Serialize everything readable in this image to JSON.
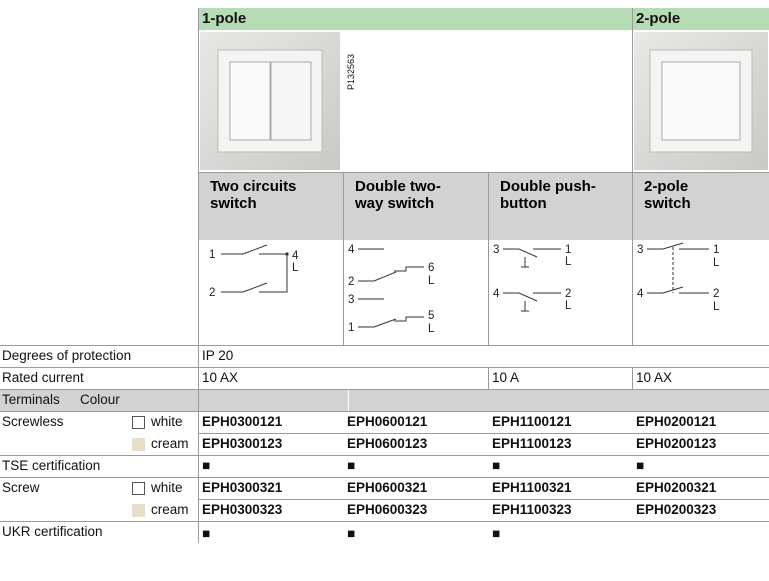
{
  "header": {
    "group_1": "1-pole",
    "group_2": "2-pole",
    "image_code": "P132563"
  },
  "products": [
    {
      "name": "Two circuits switch",
      "diagram": [
        "1",
        "4",
        "L",
        "2"
      ]
    },
    {
      "name": "Double two-way switch",
      "diagram": [
        "4",
        "6",
        "L",
        "2",
        "3",
        "5",
        "1",
        "L"
      ]
    },
    {
      "name": "Double push-button",
      "diagram": [
        "3",
        "1",
        "L",
        "4",
        "2",
        "L"
      ]
    },
    {
      "name": "2-pole switch",
      "diagram": [
        "3",
        "1",
        "L",
        "4",
        "2",
        "L"
      ]
    }
  ],
  "protection": {
    "label": "Degrees of protection",
    "value": "IP 20"
  },
  "rated_current": {
    "label": "Rated current",
    "values": [
      "10 AX",
      "10 A",
      "10 AX"
    ]
  },
  "terminals_header": {
    "terminals": "Terminals",
    "colour": "Colour"
  },
  "screwless": {
    "label": "Screwless",
    "white": {
      "label": "white",
      "codes": [
        "EPH0300121",
        "EPH0600121",
        "EPH1100121",
        "EPH0200121"
      ]
    },
    "cream": {
      "label": "cream",
      "codes": [
        "EPH0300123",
        "EPH0600123",
        "EPH1100123",
        "EPH0200123"
      ]
    }
  },
  "tse": {
    "label": "TSE certification",
    "marks": [
      "■",
      "■",
      "■",
      "■"
    ]
  },
  "screw": {
    "label": "Screw",
    "white": {
      "label": "white",
      "codes": [
        "EPH0300321",
        "EPH0600321",
        "EPH1100321",
        "EPH0200321"
      ]
    },
    "cream": {
      "label": "cream",
      "codes": [
        "EPH0300323",
        "EPH0600323",
        "EPH1100323",
        "EPH0200323"
      ]
    }
  },
  "ukr": {
    "label": "UKR certification",
    "marks": [
      "■",
      "■",
      "■"
    ]
  }
}
